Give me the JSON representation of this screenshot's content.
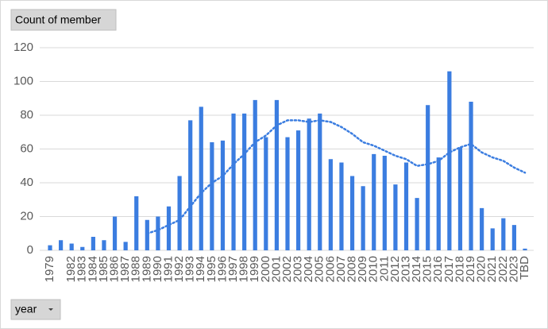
{
  "chart_data": {
    "type": "bar",
    "value_button": "Count of member",
    "axis_button": "year",
    "categories": [
      "1979",
      null,
      "1982",
      "1983",
      "1984",
      "1985",
      "1986",
      "1987",
      "1988",
      "1989",
      "1990",
      "1991",
      "1992",
      "1993",
      "1994",
      "1995",
      "1996",
      "1997",
      "1998",
      "1999",
      "2000",
      "2001",
      "2002",
      "2003",
      "2004",
      "2005",
      "2006",
      "2007",
      "2008",
      "2009",
      "2010",
      "2011",
      "2012",
      "2013",
      "2014",
      "2015",
      "2016",
      "2017",
      "2018",
      "2019",
      "2020",
      "2021",
      "2022",
      "2023",
      "TBD"
    ],
    "values": [
      3,
      6,
      4,
      2,
      8,
      6,
      20,
      5,
      32,
      18,
      20,
      26,
      44,
      77,
      85,
      64,
      65,
      81,
      81,
      89,
      67,
      89,
      67,
      71,
      78,
      81,
      54,
      52,
      44,
      38,
      57,
      56,
      39,
      52,
      31,
      86,
      55,
      106,
      61,
      88,
      25,
      13,
      19,
      15,
      1
    ],
    "trendline": [
      null,
      null,
      null,
      null,
      null,
      null,
      null,
      null,
      null,
      10,
      12,
      15,
      18,
      26,
      34,
      40,
      44,
      51,
      57,
      64,
      68,
      74,
      77,
      77,
      76,
      77,
      76,
      73,
      69,
      64,
      62,
      59,
      56,
      54,
      50,
      51,
      53,
      58,
      61,
      63,
      58,
      55,
      53,
      49,
      46
    ],
    "color": "#3b7de0",
    "ylim": [
      0,
      120
    ],
    "yticks": [
      0,
      20,
      40,
      60,
      80,
      100,
      120
    ],
    "grid": true
  }
}
